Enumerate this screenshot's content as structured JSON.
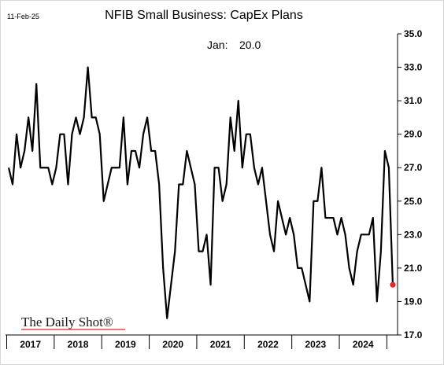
{
  "chart_data": {
    "type": "line",
    "date_label": "11-Feb-25",
    "title": "NFIB Small Business: CapEx Plans",
    "annotation": {
      "label": "Jan:",
      "value": "20.0"
    },
    "watermark": "The Daily Shot®",
    "xlabel": "",
    "ylabel": "",
    "ylim": [
      17,
      35
    ],
    "y_ticks": [
      "17.0",
      "19.0",
      "21.0",
      "23.0",
      "25.0",
      "27.0",
      "29.0",
      "31.0",
      "33.0",
      "35.0"
    ],
    "x_tick_labels": [
      "2017",
      "2018",
      "2019",
      "2020",
      "2021",
      "2022",
      "2023",
      "2024"
    ],
    "x_start": "2017-01",
    "x_end": "2025-01",
    "series": [
      {
        "color": "#000000",
        "end_marker_color": "#e8252b",
        "values": [
          27,
          26,
          29,
          27,
          28,
          30,
          28,
          32,
          27,
          27,
          27,
          26,
          27,
          29,
          29,
          26,
          29,
          30,
          29,
          30,
          33,
          30,
          30,
          29,
          25,
          26,
          27,
          27,
          27,
          30,
          26,
          28,
          28,
          27,
          29,
          30,
          28,
          28,
          26,
          21,
          18,
          20,
          22,
          26,
          26,
          28,
          27,
          26,
          22,
          22,
          23,
          20,
          27,
          27,
          25,
          26,
          30,
          28,
          31,
          27,
          29,
          29,
          27,
          26,
          27,
          25,
          23,
          22,
          25,
          24,
          23,
          24,
          23,
          21,
          21,
          20,
          19,
          25,
          25,
          27,
          24,
          24,
          24,
          23,
          24,
          23,
          21,
          20,
          22,
          23,
          23,
          23,
          24,
          19,
          22,
          28,
          27,
          20
        ]
      }
    ]
  }
}
